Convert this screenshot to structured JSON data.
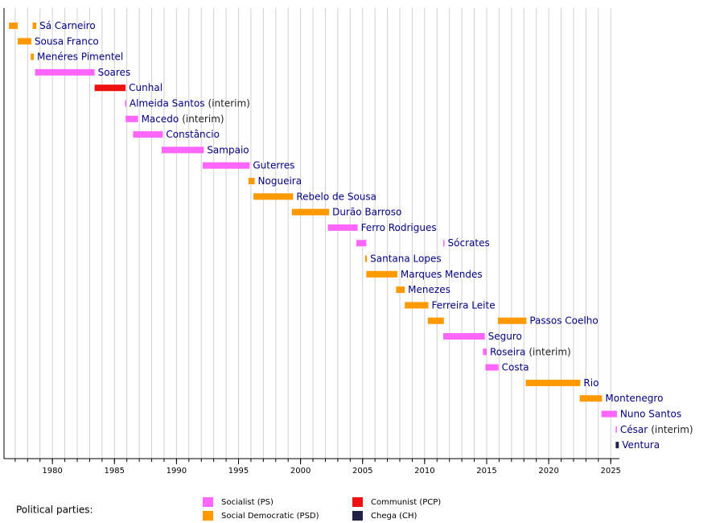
{
  "chart_data": {
    "type": "timeline",
    "xlim": [
      1976.1,
      2025.7
    ],
    "xticks": [
      1980,
      1985,
      1990,
      1995,
      2000,
      2005,
      2010,
      2015,
      2020,
      2025
    ],
    "xminorticks": [
      1977,
      1978,
      1979,
      1980,
      1981,
      1982,
      1983,
      1984,
      1985,
      1986,
      1987,
      1988,
      1989,
      1990,
      1991,
      1992,
      1993,
      1994,
      1995,
      1996,
      1997,
      1998,
      1999,
      2000,
      2001,
      2002,
      2003,
      2004,
      2005,
      2006,
      2007,
      2008,
      2009,
      2010,
      2011,
      2012,
      2013,
      2014,
      2015,
      2016,
      2017,
      2018,
      2019,
      2020,
      2021,
      2022,
      2023,
      2024,
      2025
    ],
    "grid": true,
    "categories": [
      "Sá Carneiro",
      "Sousa Franco",
      "Menéres Pimentel",
      "Soares",
      "Cunhal",
      "Almeida Santos",
      "Macedo",
      "Constâncio",
      "Sampaio",
      "Guterres",
      "Nogueira",
      "Rebelo de Sousa",
      "Durão Barroso",
      "Ferro Rodrigues",
      "Sócrates",
      "Santana Lopes",
      "Marques Mendes",
      "Menezes",
      "Ferreira Leite",
      "Passos Coelho",
      "Seguro",
      "Roseira",
      "Costa",
      "Rio",
      "Montenegro",
      "Nuno Santos",
      "César",
      "Ventura"
    ],
    "category_notes": [
      null,
      null,
      null,
      null,
      null,
      "(interim)",
      "(interim)",
      null,
      null,
      null,
      null,
      null,
      null,
      null,
      null,
      null,
      null,
      null,
      null,
      null,
      null,
      "(interim)",
      null,
      null,
      null,
      null,
      "(interim)",
      null
    ],
    "legend_title": "Political parties:",
    "series": [
      {
        "name": "Socialist (PS)",
        "color": "#ff66ff",
        "bars": [
          {
            "leader": "Soares",
            "start": 1978.6,
            "end": 1983.4
          },
          {
            "leader": "Almeida Santos",
            "start": 1985.85,
            "end": 1985.95
          },
          {
            "leader": "Macedo",
            "start": 1985.9,
            "end": 1986.9
          },
          {
            "leader": "Constâncio",
            "start": 1986.5,
            "end": 1988.9
          },
          {
            "leader": "Sampaio",
            "start": 1988.8,
            "end": 1992.2
          },
          {
            "leader": "Guterres",
            "start": 1992.1,
            "end": 1995.9
          },
          {
            "leader": "Ferro Rodrigues",
            "start": 2002.2,
            "end": 2004.6
          },
          {
            "leader": "Sócrates",
            "start": 2004.5,
            "end": 2005.3
          },
          {
            "leader": "Sócrates",
            "start": 2011.5,
            "end": 2011.6
          },
          {
            "leader": "Seguro",
            "start": 2011.5,
            "end": 2014.85
          },
          {
            "leader": "Roseira",
            "start": 2014.7,
            "end": 2015.0
          },
          {
            "leader": "Costa",
            "start": 2014.9,
            "end": 2015.95
          },
          {
            "leader": "Nuno Santos",
            "start": 2024.25,
            "end": 2025.5
          },
          {
            "leader": "César",
            "start": 2025.4,
            "end": 2025.5
          }
        ]
      },
      {
        "name": "Social Democratic (PSD)",
        "color": "#ff9900",
        "bars": [
          {
            "leader": "Sá Carneiro",
            "start": 1976.5,
            "end": 1977.2
          },
          {
            "leader": "Sá Carneiro",
            "start": 1978.4,
            "end": 1978.7
          },
          {
            "leader": "Sousa Franco",
            "start": 1977.2,
            "end": 1978.3
          },
          {
            "leader": "Menéres Pimentel",
            "start": 1978.25,
            "end": 1978.5
          },
          {
            "leader": "Nogueira",
            "start": 1995.8,
            "end": 1996.3
          },
          {
            "leader": "Rebelo de Sousa",
            "start": 1996.2,
            "end": 1999.4
          },
          {
            "leader": "Durão Barroso",
            "start": 1999.3,
            "end": 2002.3
          },
          {
            "leader": "Santana Lopes",
            "start": 2005.2,
            "end": 2005.35
          },
          {
            "leader": "Marques Mendes",
            "start": 2005.3,
            "end": 2007.8
          },
          {
            "leader": "Menezes",
            "start": 2007.7,
            "end": 2008.4
          },
          {
            "leader": "Ferreira Leite",
            "start": 2008.4,
            "end": 2010.3
          },
          {
            "leader": "Passos Coelho",
            "start": 2010.25,
            "end": 2011.55
          },
          {
            "leader": "Passos Coelho",
            "start": 2015.9,
            "end": 2018.2
          },
          {
            "leader": "Rio",
            "start": 2018.15,
            "end": 2022.55
          },
          {
            "leader": "Montenegro",
            "start": 2022.5,
            "end": 2024.3
          }
        ]
      },
      {
        "name": "Communist (PCP)",
        "color": "#ee1111",
        "bars": [
          {
            "leader": "Cunhal",
            "start": 1983.4,
            "end": 1985.9
          }
        ]
      },
      {
        "name": "Chega (CH)",
        "color": "#222244",
        "bars": [
          {
            "leader": "Ventura",
            "start": 2025.4,
            "end": 2025.65
          }
        ]
      }
    ]
  }
}
